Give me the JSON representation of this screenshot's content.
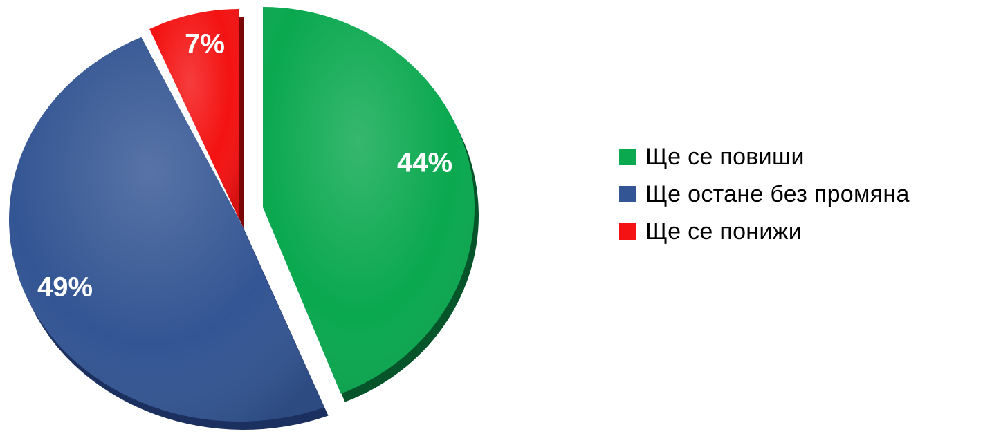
{
  "chart_data": {
    "type": "pie",
    "title": "",
    "legend_position": "right",
    "slices": [
      {
        "label": "Ще се повиши",
        "value": 44,
        "display": "44%",
        "color": "#0aa84f",
        "side": "#05542a"
      },
      {
        "label": "Ще остане без промяна",
        "value": 49,
        "display": "49%",
        "color": "#335593",
        "side": "#1c3060"
      },
      {
        "label": "Ще се понижи",
        "value": 7,
        "display": "7%",
        "color": "#f41212",
        "side": "#7a0606"
      }
    ]
  }
}
